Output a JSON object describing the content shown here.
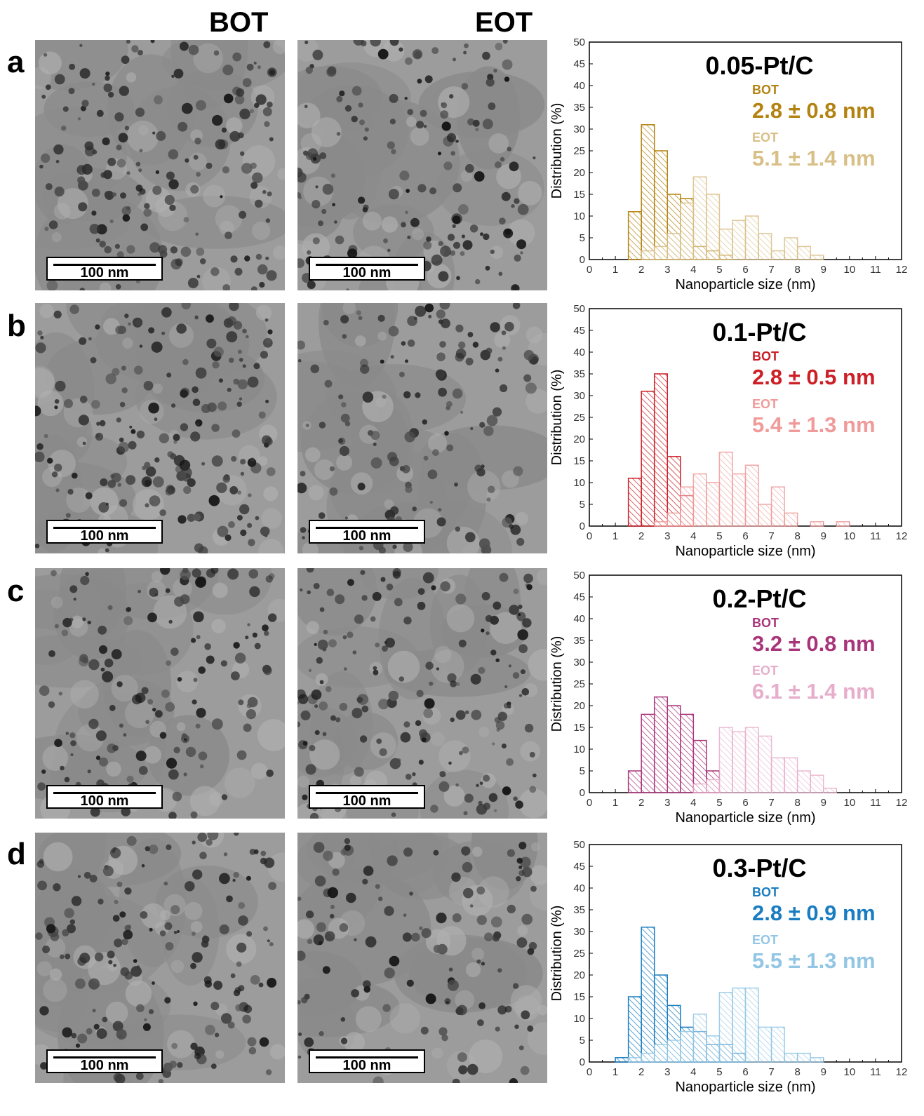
{
  "columns": {
    "bot": "BOT",
    "eot": "EOT"
  },
  "scalebar_label": "100 nm",
  "axis": {
    "xlabel": "Nanoparticle size (nm)",
    "ylabel": "Distribution (%)",
    "xlim": [
      0,
      12
    ],
    "ylim": [
      0,
      50
    ],
    "xticks": [
      0,
      1,
      2,
      3,
      4,
      5,
      6,
      7,
      8,
      9,
      10,
      11,
      12
    ],
    "yticks": [
      0,
      5,
      10,
      15,
      20,
      25,
      30,
      35,
      40,
      45,
      50
    ]
  },
  "panels": [
    {
      "letter": "a",
      "title": "0.05-Pt/C",
      "bot_label": "BOT",
      "bot_value": "2.8 ± 0.8 nm",
      "eot_label": "EOT",
      "eot_value": "5.1 ± 1.4 nm"
    },
    {
      "letter": "b",
      "title": "0.1-Pt/C",
      "bot_label": "BOT",
      "bot_value": "2.8 ± 0.5 nm",
      "eot_label": "EOT",
      "eot_value": "5.4 ± 1.3 nm"
    },
    {
      "letter": "c",
      "title": "0.2-Pt/C",
      "bot_label": "BOT",
      "bot_value": "3.2 ± 0.8 nm",
      "eot_label": "EOT",
      "eot_value": "6.1 ± 1.4 nm"
    },
    {
      "letter": "d",
      "title": "0.3-Pt/C",
      "bot_label": "BOT",
      "bot_value": "2.8 ± 0.9 nm",
      "eot_label": "EOT",
      "eot_value": "5.5 ± 1.3 nm"
    }
  ],
  "chart_data": [
    {
      "type": "bar",
      "title": "0.05-Pt/C",
      "xlabel": "Nanoparticle size (nm)",
      "ylabel": "Distribution (%)",
      "xlim": [
        0,
        12
      ],
      "ylim": [
        0,
        50
      ],
      "bin_width": 0.5,
      "colors": {
        "bot": "#b38312",
        "eot": "#d8bf86"
      },
      "series": [
        {
          "name": "BOT",
          "bin_start": [
            1.5,
            2,
            2.5,
            3,
            3.5,
            4,
            4.5,
            5
          ],
          "values": [
            11,
            31,
            25,
            15,
            14,
            3,
            2,
            1
          ]
        },
        {
          "name": "EOT",
          "bin_start": [
            2,
            2.5,
            3,
            3.5,
            4,
            4.5,
            5,
            5.5,
            6,
            6.5,
            7,
            7.5,
            8,
            8.5
          ],
          "values": [
            2,
            3,
            6,
            13,
            19,
            15,
            7,
            9,
            10,
            6,
            2,
            5,
            3,
            1
          ]
        }
      ]
    },
    {
      "type": "bar",
      "title": "0.1-Pt/C",
      "xlabel": "Nanoparticle size (nm)",
      "ylabel": "Distribution (%)",
      "xlim": [
        0,
        12
      ],
      "ylim": [
        0,
        50
      ],
      "bin_width": 0.5,
      "colors": {
        "bot": "#cc1f26",
        "eot": "#f09a9a"
      },
      "series": [
        {
          "name": "BOT",
          "bin_start": [
            1.5,
            2,
            2.5,
            3,
            3.5
          ],
          "values": [
            11,
            31,
            35,
            16,
            7
          ]
        },
        {
          "name": "EOT",
          "bin_start": [
            2.5,
            3,
            3.5,
            4,
            4.5,
            5,
            5.5,
            6,
            6.5,
            7,
            7.5,
            8.5,
            9.5
          ],
          "values": [
            1,
            3,
            9,
            12,
            10,
            17,
            12,
            14,
            5,
            9,
            3,
            1,
            1
          ]
        }
      ]
    },
    {
      "type": "bar",
      "title": "0.2-Pt/C",
      "xlabel": "Nanoparticle size (nm)",
      "ylabel": "Distribution (%)",
      "xlim": [
        0,
        12
      ],
      "ylim": [
        0,
        50
      ],
      "bin_width": 0.5,
      "colors": {
        "bot": "#a8357a",
        "eot": "#e7aecb"
      },
      "series": [
        {
          "name": "BOT",
          "bin_start": [
            1.5,
            2,
            2.5,
            3,
            3.5,
            4,
            4.5
          ],
          "values": [
            5,
            18,
            22,
            20,
            18,
            12,
            5
          ]
        },
        {
          "name": "EOT",
          "bin_start": [
            4,
            4.5,
            5,
            5.5,
            6,
            6.5,
            7,
            7.5,
            8,
            8.5,
            9
          ],
          "values": [
            2,
            3,
            15,
            14,
            15,
            13,
            8,
            8,
            5,
            4,
            1
          ]
        }
      ]
    },
    {
      "type": "bar",
      "title": "0.3-Pt/C",
      "xlabel": "Nanoparticle size (nm)",
      "ylabel": "Distribution (%)",
      "xlim": [
        0,
        12
      ],
      "ylim": [
        0,
        50
      ],
      "bin_width": 0.5,
      "colors": {
        "bot": "#1a7dc1",
        "eot": "#92c6e4"
      },
      "series": [
        {
          "name": "BOT",
          "bin_start": [
            1,
            1.5,
            2,
            2.5,
            3,
            3.5,
            4,
            4.5,
            5,
            5.5
          ],
          "values": [
            1,
            15,
            31,
            20,
            13,
            8,
            7,
            4,
            4,
            2
          ]
        },
        {
          "name": "EOT",
          "bin_start": [
            1.5,
            2,
            2.5,
            3,
            3.5,
            4,
            4.5,
            5,
            5.5,
            6,
            6.5,
            7,
            7.5,
            8,
            8.5
          ],
          "values": [
            1,
            2,
            4,
            5,
            7,
            11,
            6,
            16,
            17,
            17,
            8,
            8,
            2,
            2,
            1
          ]
        }
      ]
    }
  ]
}
